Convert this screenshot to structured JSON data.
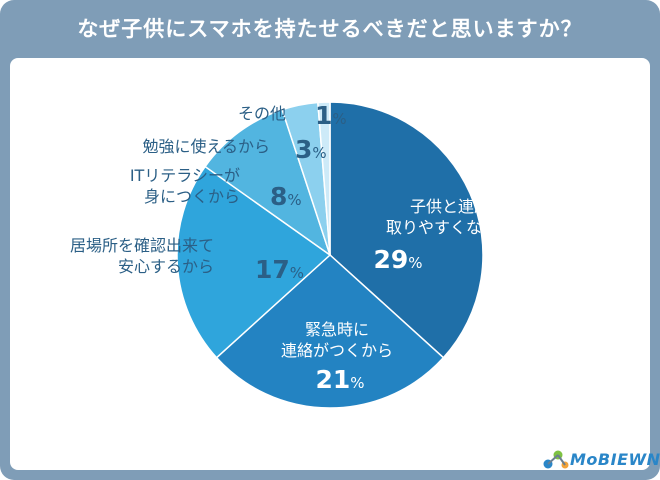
{
  "header": {
    "title": "なぜ子供にスマホを持たせるべきだと思いますか？"
  },
  "brand": {
    "logo_text": "MoBIEWN"
  },
  "colors": {
    "frame": "#7f9db7",
    "label_text": "#2b5f86",
    "inside_text": "#ffffff"
  },
  "chart_data": {
    "type": "pie",
    "title": "なぜ子供にスマホを持たせるべきだと思いますか？",
    "unit": "%",
    "start_angle_deg": 0,
    "direction": "clockwise",
    "slices": [
      {
        "label_lines": [
          "子供と連絡を",
          "取りやすくなるから"
        ],
        "value": 29,
        "color": "#1f6fa8",
        "label_position": "inside"
      },
      {
        "label_lines": [
          "緊急時に",
          "連絡がつくから"
        ],
        "value": 21,
        "color": "#2383c2",
        "label_position": "inside"
      },
      {
        "label_lines": [
          "居場所を確認出来て",
          "安心するから"
        ],
        "value": 17,
        "color": "#2fa5dc",
        "label_position": "outside"
      },
      {
        "label_lines": [
          "ITリテラシーが",
          "身につくから"
        ],
        "value": 8,
        "color": "#52b5e0",
        "label_position": "outside"
      },
      {
        "label_lines": [
          "勉強に使えるから"
        ],
        "value": 3,
        "color": "#8cd0ee",
        "label_position": "outside"
      },
      {
        "label_lines": [
          "その他"
        ],
        "value": 1,
        "color": "#cdeaf8",
        "label_position": "outside"
      }
    ]
  }
}
